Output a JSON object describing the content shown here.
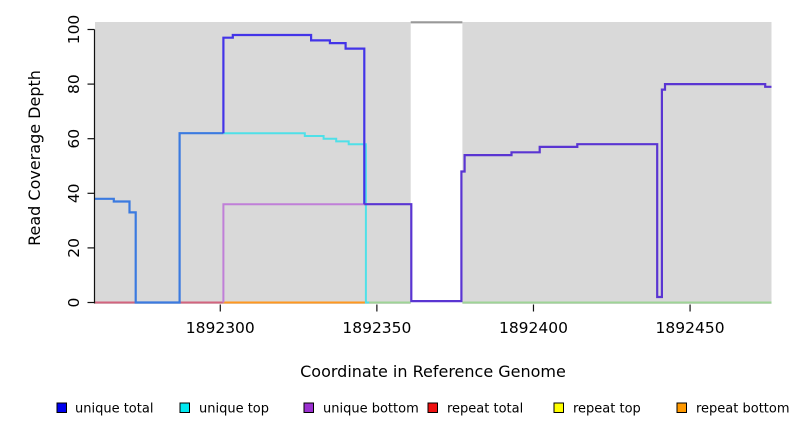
{
  "chart_data": {
    "type": "line",
    "subtype": "step-coverage",
    "title": "",
    "xlabel": "Coordinate in Reference Genome",
    "ylabel": "Read Coverage Depth",
    "x_ticks": [
      "1892300",
      "1892350",
      "1892400",
      "1892450"
    ],
    "x_tick_values": [
      1892300,
      1892350,
      1892400,
      1892450
    ],
    "y_ticks": [
      "0",
      "20",
      "40",
      "60",
      "80",
      "100"
    ],
    "y_tick_values": [
      0,
      20,
      40,
      60,
      80,
      100
    ],
    "xlim": [
      1892260,
      1892476
    ],
    "ylim": [
      0,
      103
    ],
    "grid": false,
    "plot_bg_color": "#d9d9d9",
    "gap_region": {
      "note": "white no-data band with gray cap line on top",
      "x0": 1892360.8,
      "x1": 1892377.3,
      "cap_value": 103,
      "cap_line_color": "#999999",
      "fill": "#ffffff",
      "draw_before_series_index": 5
    },
    "series": [
      {
        "name": "repeat-total-zero-line",
        "legend_ref": "repeat total",
        "color": "#d2647e",
        "width": 2,
        "points": [
          [
            1892260,
            0
          ],
          [
            1892301,
            0
          ]
        ]
      },
      {
        "name": "repeat-bottom-zero-line",
        "legend_ref": "repeat bottom",
        "color": "#ff9820",
        "width": 2,
        "points": [
          [
            1892301,
            0
          ],
          [
            1892347,
            0
          ]
        ]
      },
      {
        "name": "zero-line-right",
        "legend_ref": "repeat top",
        "color": "#9ed496",
        "width": 2,
        "points": [
          [
            1892347,
            0
          ],
          [
            1892476,
            0
          ]
        ]
      },
      {
        "name": "unique-bottom",
        "legend_ref": "unique bottom",
        "color": "#c07fd8",
        "width": 2,
        "points": [
          [
            1892301,
            0
          ],
          [
            1892301,
            36
          ],
          [
            1892347,
            36
          ]
        ]
      },
      {
        "name": "unique-top",
        "legend_ref": "unique top",
        "color": "#4fe0e8",
        "width": 2,
        "points": [
          [
            1892301,
            62
          ],
          [
            1892327,
            61
          ],
          [
            1892333,
            60
          ],
          [
            1892337,
            59
          ],
          [
            1892341,
            58
          ],
          [
            1892346.5,
            0
          ],
          [
            1892347.5,
            0
          ]
        ]
      },
      {
        "name": "unique-total-left",
        "legend_ref": "unique total",
        "color": "#3b7ae0",
        "width": 2.2,
        "points": [
          [
            1892260,
            38
          ],
          [
            1892266,
            37
          ],
          [
            1892271,
            33
          ],
          [
            1892273,
            0
          ],
          [
            1892287,
            62
          ],
          [
            1892301,
            62
          ]
        ]
      },
      {
        "name": "unique-total-mid",
        "legend_ref": "unique total",
        "color": "#4334e8",
        "width": 2.2,
        "points": [
          [
            1892301,
            62
          ],
          [
            1892301,
            97
          ],
          [
            1892304,
            98
          ],
          [
            1892329,
            96
          ],
          [
            1892335,
            95
          ],
          [
            1892340,
            93
          ],
          [
            1892346,
            36
          ]
        ]
      },
      {
        "name": "unique-total-right",
        "legend_ref": "unique total",
        "color": "#5a35d2",
        "width": 2.2,
        "points": [
          [
            1892346,
            36
          ],
          [
            1892361,
            0.5
          ],
          [
            1892377,
            48
          ],
          [
            1892378,
            54
          ],
          [
            1892393,
            55
          ],
          [
            1892402,
            57
          ],
          [
            1892414,
            58
          ],
          [
            1892439.5,
            2
          ],
          [
            1892441,
            78
          ],
          [
            1892442,
            80
          ],
          [
            1892474,
            79
          ],
          [
            1892476,
            79
          ]
        ]
      }
    ],
    "legend": [
      {
        "label": "unique total",
        "color": "#0000ee"
      },
      {
        "label": "unique top",
        "color": "#00e8f0"
      },
      {
        "label": "unique bottom",
        "color": "#9b30d0"
      },
      {
        "label": "repeat total",
        "color": "#ee1111"
      },
      {
        "label": "repeat top",
        "color": "#ffff00"
      },
      {
        "label": "repeat bottom",
        "color": "#ff9900"
      }
    ],
    "legend_position": "bottom"
  }
}
